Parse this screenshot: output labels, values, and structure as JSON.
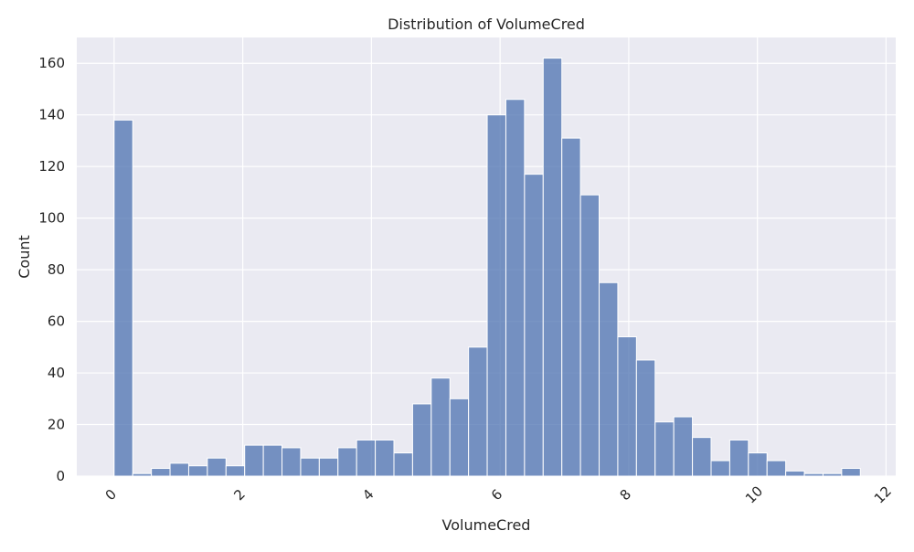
{
  "chart_data": {
    "type": "bar",
    "title": "Distribution of VolumeCred",
    "xlabel": "VolumeCred",
    "ylabel": "Count",
    "xlim": [
      -0.58,
      12.15
    ],
    "ylim": [
      0,
      170
    ],
    "xticks": [
      0,
      2,
      4,
      6,
      8,
      10,
      12
    ],
    "yticks": [
      0,
      20,
      40,
      60,
      80,
      100,
      120,
      140,
      160
    ],
    "grid": true,
    "bar_color": "#4c72b0",
    "background_color": "#eaeaf2",
    "bins": [
      {
        "x0": 0.0,
        "x1": 0.29,
        "count": 138
      },
      {
        "x0": 0.29,
        "x1": 0.58,
        "count": 1
      },
      {
        "x0": 0.58,
        "x1": 0.87,
        "count": 3
      },
      {
        "x0": 0.87,
        "x1": 1.16,
        "count": 5
      },
      {
        "x0": 1.16,
        "x1": 1.45,
        "count": 4
      },
      {
        "x0": 1.45,
        "x1": 1.74,
        "count": 7
      },
      {
        "x0": 1.74,
        "x1": 2.03,
        "count": 4
      },
      {
        "x0": 2.03,
        "x1": 2.32,
        "count": 12
      },
      {
        "x0": 2.32,
        "x1": 2.61,
        "count": 12
      },
      {
        "x0": 2.61,
        "x1": 2.9,
        "count": 11
      },
      {
        "x0": 2.9,
        "x1": 3.19,
        "count": 7
      },
      {
        "x0": 3.19,
        "x1": 3.48,
        "count": 7
      },
      {
        "x0": 3.48,
        "x1": 3.77,
        "count": 11
      },
      {
        "x0": 3.77,
        "x1": 4.06,
        "count": 14
      },
      {
        "x0": 4.06,
        "x1": 4.35,
        "count": 14
      },
      {
        "x0": 4.35,
        "x1": 4.64,
        "count": 9
      },
      {
        "x0": 4.64,
        "x1": 4.93,
        "count": 28
      },
      {
        "x0": 4.93,
        "x1": 5.22,
        "count": 38
      },
      {
        "x0": 5.22,
        "x1": 5.51,
        "count": 30
      },
      {
        "x0": 5.51,
        "x1": 5.8,
        "count": 50
      },
      {
        "x0": 5.8,
        "x1": 6.09,
        "count": 140
      },
      {
        "x0": 6.09,
        "x1": 6.38,
        "count": 146
      },
      {
        "x0": 6.38,
        "x1": 6.67,
        "count": 117
      },
      {
        "x0": 6.67,
        "x1": 6.96,
        "count": 162
      },
      {
        "x0": 6.96,
        "x1": 7.25,
        "count": 131
      },
      {
        "x0": 7.25,
        "x1": 7.54,
        "count": 109
      },
      {
        "x0": 7.54,
        "x1": 7.83,
        "count": 75
      },
      {
        "x0": 7.83,
        "x1": 8.12,
        "count": 54
      },
      {
        "x0": 8.12,
        "x1": 8.41,
        "count": 45
      },
      {
        "x0": 8.41,
        "x1": 8.7,
        "count": 21
      },
      {
        "x0": 8.7,
        "x1": 8.99,
        "count": 23
      },
      {
        "x0": 8.99,
        "x1": 9.28,
        "count": 15
      },
      {
        "x0": 9.28,
        "x1": 9.57,
        "count": 6
      },
      {
        "x0": 9.57,
        "x1": 9.86,
        "count": 14
      },
      {
        "x0": 9.86,
        "x1": 10.15,
        "count": 9
      },
      {
        "x0": 10.15,
        "x1": 10.44,
        "count": 6
      },
      {
        "x0": 10.44,
        "x1": 10.73,
        "count": 2
      },
      {
        "x0": 10.73,
        "x1": 11.02,
        "count": 1
      },
      {
        "x0": 11.02,
        "x1": 11.31,
        "count": 1
      },
      {
        "x0": 11.31,
        "x1": 11.6,
        "count": 3
      }
    ]
  }
}
